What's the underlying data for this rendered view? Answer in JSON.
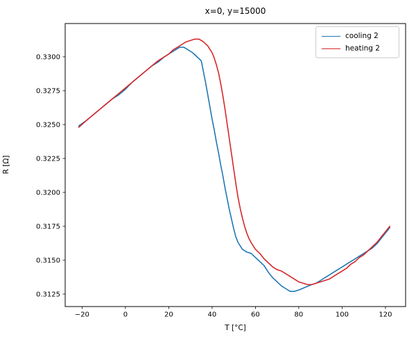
{
  "figure": {
    "background": "#ffffff",
    "text_color": "#000000",
    "spine_color": "#000000",
    "legend_border_color": "#cccccc"
  },
  "chart_data": {
    "type": "line",
    "title": "x=0, y=15000",
    "xlabel": "T [°C]",
    "ylabel": "R [Ω]",
    "xlim": [
      -27.8,
      129.3
    ],
    "ylim": [
      0.31158,
      0.33245
    ],
    "x_ticks": [
      -20,
      0,
      20,
      40,
      60,
      80,
      100,
      120
    ],
    "y_ticks": [
      0.3125,
      0.315,
      0.3175,
      0.32,
      0.3225,
      0.325,
      0.3275,
      0.33
    ],
    "grid": false,
    "legend_position": "upper right",
    "series": [
      {
        "name": "cooling 2",
        "color": "#1f77b4",
        "points": [
          [
            -21.5,
            0.3249
          ],
          [
            -18,
            0.3253
          ],
          [
            -15,
            0.3257
          ],
          [
            -12,
            0.3261
          ],
          [
            -9,
            0.3265
          ],
          [
            -6,
            0.3269
          ],
          [
            -3,
            0.3272
          ],
          [
            0,
            0.3276
          ],
          [
            3,
            0.3281
          ],
          [
            6,
            0.3285
          ],
          [
            9,
            0.3289
          ],
          [
            12,
            0.3293
          ],
          [
            15,
            0.3296
          ],
          [
            18,
            0.33
          ],
          [
            20,
            0.3302
          ],
          [
            22,
            0.3304
          ],
          [
            24,
            0.3306
          ],
          [
            25,
            0.3307
          ],
          [
            27,
            0.3307
          ],
          [
            29,
            0.3305
          ],
          [
            31,
            0.3303
          ],
          [
            33,
            0.33
          ],
          [
            35,
            0.3297
          ],
          [
            36,
            0.3289
          ],
          [
            37,
            0.3281
          ],
          [
            38,
            0.3272
          ],
          [
            39,
            0.3263
          ],
          [
            40,
            0.3254
          ],
          [
            41,
            0.3246
          ],
          [
            42,
            0.3237
          ],
          [
            43,
            0.3229
          ],
          [
            44,
            0.322
          ],
          [
            45,
            0.3212
          ],
          [
            46,
            0.3203
          ],
          [
            47,
            0.3195
          ],
          [
            48,
            0.3187
          ],
          [
            49,
            0.318
          ],
          [
            50,
            0.3173
          ],
          [
            51,
            0.3167
          ],
          [
            52,
            0.3163
          ],
          [
            54,
            0.3158
          ],
          [
            56,
            0.3156
          ],
          [
            58,
            0.3155
          ],
          [
            60,
            0.3152
          ],
          [
            62,
            0.3149
          ],
          [
            64,
            0.3146
          ],
          [
            66,
            0.3141
          ],
          [
            68,
            0.3137
          ],
          [
            70,
            0.3134
          ],
          [
            72,
            0.3131
          ],
          [
            74,
            0.3129
          ],
          [
            76,
            0.3127
          ],
          [
            78,
            0.3127
          ],
          [
            80,
            0.3128
          ],
          [
            83,
            0.313
          ],
          [
            86,
            0.3132
          ],
          [
            88,
            0.3133
          ],
          [
            90,
            0.3135
          ],
          [
            92,
            0.3137
          ],
          [
            94,
            0.3139
          ],
          [
            96,
            0.3141
          ],
          [
            98,
            0.3143
          ],
          [
            100,
            0.3145
          ],
          [
            102,
            0.3147
          ],
          [
            104,
            0.3149
          ],
          [
            106,
            0.3151
          ],
          [
            108,
            0.3153
          ],
          [
            110,
            0.3155
          ],
          [
            112,
            0.3157
          ],
          [
            114,
            0.3159
          ],
          [
            116,
            0.3162
          ],
          [
            118,
            0.3166
          ],
          [
            120,
            0.317
          ],
          [
            122,
            0.3174
          ]
        ]
      },
      {
        "name": "heating 2",
        "color": "#d62728",
        "points": [
          [
            -21.5,
            0.3248
          ],
          [
            -18,
            0.3253
          ],
          [
            -15,
            0.3257
          ],
          [
            -12,
            0.3261
          ],
          [
            -9,
            0.3265
          ],
          [
            -6,
            0.3269
          ],
          [
            -3,
            0.3273
          ],
          [
            0,
            0.3277
          ],
          [
            3,
            0.3281
          ],
          [
            6,
            0.3285
          ],
          [
            9,
            0.3289
          ],
          [
            12,
            0.3293
          ],
          [
            15,
            0.3297
          ],
          [
            18,
            0.33
          ],
          [
            20,
            0.3302
          ],
          [
            22,
            0.3305
          ],
          [
            24,
            0.3307
          ],
          [
            26,
            0.3309
          ],
          [
            28,
            0.3311
          ],
          [
            30,
            0.3312
          ],
          [
            32,
            0.3313
          ],
          [
            34,
            0.3313
          ],
          [
            36,
            0.3311
          ],
          [
            38,
            0.3308
          ],
          [
            40,
            0.3303
          ],
          [
            41,
            0.3299
          ],
          [
            42,
            0.3294
          ],
          [
            43,
            0.3288
          ],
          [
            44,
            0.328
          ],
          [
            45,
            0.3271
          ],
          [
            46,
            0.3261
          ],
          [
            47,
            0.325
          ],
          [
            48,
            0.3239
          ],
          [
            49,
            0.3228
          ],
          [
            50,
            0.3217
          ],
          [
            51,
            0.3206
          ],
          [
            52,
            0.3196
          ],
          [
            53,
            0.3188
          ],
          [
            54,
            0.3181
          ],
          [
            55,
            0.3175
          ],
          [
            56,
            0.317
          ],
          [
            57,
            0.3166
          ],
          [
            58,
            0.3163
          ],
          [
            60,
            0.3158
          ],
          [
            62,
            0.3155
          ],
          [
            64,
            0.3151
          ],
          [
            66,
            0.3148
          ],
          [
            68,
            0.3145
          ],
          [
            70,
            0.3143
          ],
          [
            72,
            0.3142
          ],
          [
            74,
            0.314
          ],
          [
            76,
            0.3138
          ],
          [
            78,
            0.3136
          ],
          [
            80,
            0.3134
          ],
          [
            82,
            0.3133
          ],
          [
            84,
            0.3132
          ],
          [
            86,
            0.3132
          ],
          [
            88,
            0.3133
          ],
          [
            90,
            0.3134
          ],
          [
            92,
            0.3135
          ],
          [
            94,
            0.3136
          ],
          [
            96,
            0.3138
          ],
          [
            98,
            0.314
          ],
          [
            100,
            0.3142
          ],
          [
            102,
            0.3144
          ],
          [
            104,
            0.3147
          ],
          [
            106,
            0.3149
          ],
          [
            108,
            0.3152
          ],
          [
            110,
            0.3154
          ],
          [
            112,
            0.3157
          ],
          [
            114,
            0.316
          ],
          [
            116,
            0.3163
          ],
          [
            118,
            0.3167
          ],
          [
            120,
            0.3171
          ],
          [
            122,
            0.3175
          ]
        ]
      }
    ]
  }
}
